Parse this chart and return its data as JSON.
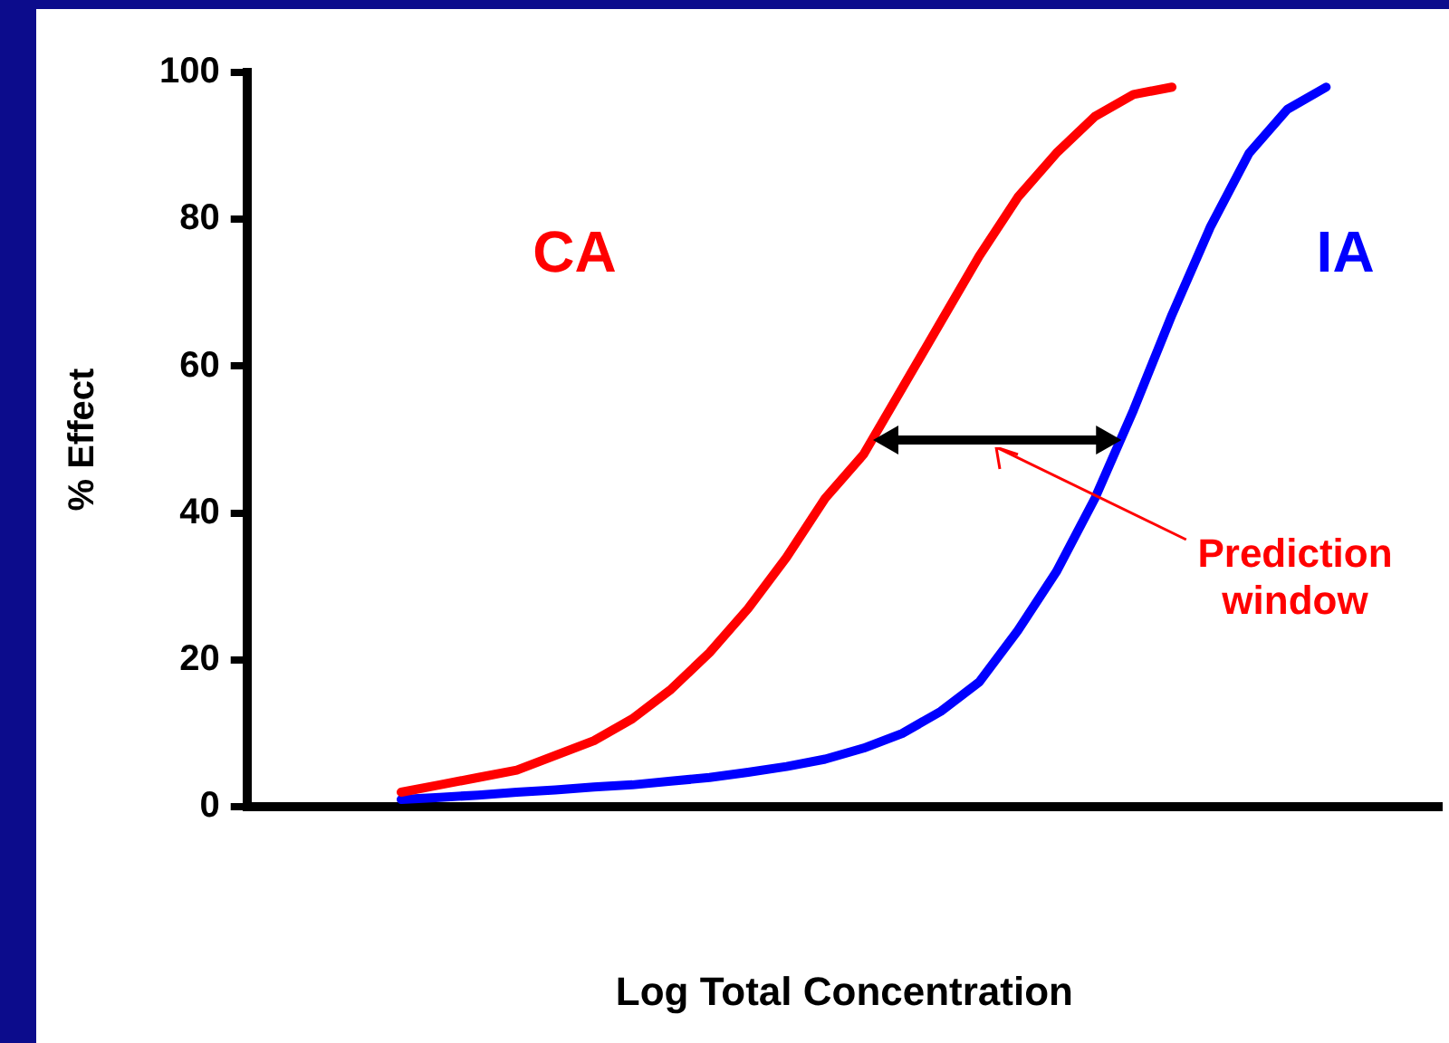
{
  "chart_data": {
    "type": "line",
    "xlabel": "Log Total Concentration",
    "ylabel": "% Effect",
    "categories": [
      null,
      null,
      null,
      null,
      null,
      null,
      null,
      null,
      null,
      null,
      null,
      null,
      null,
      null,
      null,
      null,
      null,
      null,
      null,
      null,
      null,
      null,
      null,
      null,
      null,
      null,
      null,
      null,
      null,
      null,
      null,
      null
    ],
    "series": [
      {
        "name": "CA",
        "color": "#ff0000",
        "values": [
          null,
          null,
          null,
          null,
          2,
          3,
          4,
          5,
          7,
          9,
          12,
          16,
          21,
          27,
          34,
          42,
          48,
          57,
          66,
          75,
          83,
          89,
          94,
          97,
          98,
          null,
          null,
          null,
          null,
          null,
          null,
          null
        ]
      },
      {
        "name": "IA",
        "color": "#0000ff",
        "values": [
          null,
          null,
          null,
          null,
          1,
          1.3,
          1.6,
          2,
          2.3,
          2.7,
          3,
          3.5,
          4,
          4.7,
          5.5,
          6.5,
          8,
          10,
          13,
          17,
          24,
          32,
          42,
          54,
          67,
          79,
          89,
          95,
          98,
          null,
          null,
          null
        ]
      }
    ],
    "ylim": [
      0,
      100
    ],
    "yticks": [
      0,
      20,
      40,
      60,
      80,
      100
    ],
    "grid": false,
    "legend": false,
    "marker": "none",
    "line_style": "solid",
    "annotations": [
      "Prediction window"
    ]
  }
}
